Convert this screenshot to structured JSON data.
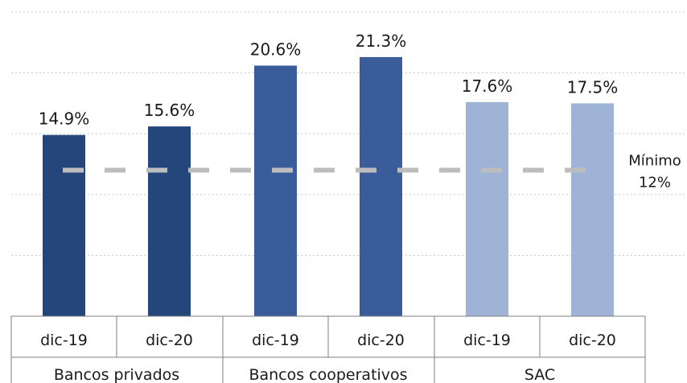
{
  "chart_data": {
    "type": "bar",
    "groups": [
      {
        "name": "Bancos privados",
        "color": "#24467b",
        "categories": [
          "dic-19",
          "dic-20"
        ],
        "values": [
          14.9,
          15.6
        ],
        "labels": [
          "14.9%",
          "15.6%"
        ]
      },
      {
        "name": "Bancos cooperativos",
        "color": "#3a5c9a",
        "categories": [
          "dic-19",
          "dic-20"
        ],
        "values": [
          20.6,
          21.3
        ],
        "labels": [
          "20.6%",
          "21.3%"
        ]
      },
      {
        "name": "SAC",
        "color": "#9fb3d6",
        "categories": [
          "dic-19",
          "dic-20"
        ],
        "values": [
          17.6,
          17.5
        ],
        "labels": [
          "17.6%",
          "17.5%"
        ]
      }
    ],
    "reference_line": {
      "value": 12,
      "label_line1": "Mínimo",
      "label_line2": "12%",
      "color": "#bdbdbd",
      "style": "dashed"
    },
    "ylim": [
      0,
      25
    ],
    "y_gridlines": [
      5,
      10,
      15,
      20,
      25
    ],
    "grid": true,
    "legend": "none"
  }
}
